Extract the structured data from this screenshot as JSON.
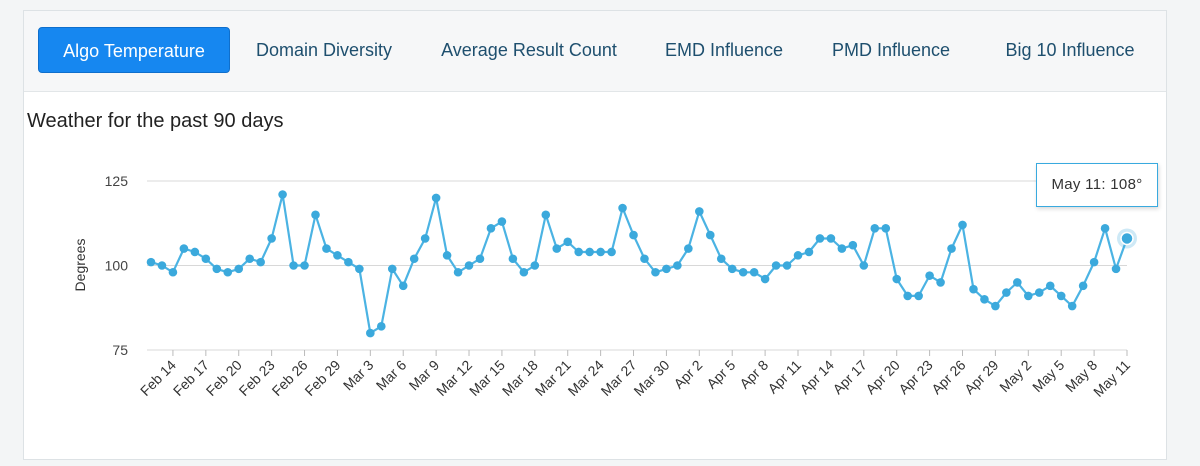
{
  "tabs": [
    {
      "label": "Algo Temperature",
      "active": true
    },
    {
      "label": "Domain Diversity",
      "active": false
    },
    {
      "label": "Average Result Count",
      "active": false
    },
    {
      "label": "EMD Influence",
      "active": false
    },
    {
      "label": "PMD Influence",
      "active": false
    },
    {
      "label": "Big 10 Influence",
      "active": false
    }
  ],
  "tooltip": {
    "text": "May 11: 108°"
  },
  "colors": {
    "line": "#4bb3e3",
    "marker": "#3ba9dc",
    "grid": "#d8d8d8",
    "accent": "#1687f0"
  },
  "chart_data": {
    "type": "line",
    "title": "Weather for the past 90 days",
    "ylabel": "Degrees",
    "xlabel": "",
    "ylim": [
      75,
      125
    ],
    "yticks": [
      75,
      100,
      125
    ],
    "grid": true,
    "legend": "none",
    "x_tick_labels": [
      "Feb 14",
      "Feb 17",
      "Feb 20",
      "Feb 23",
      "Feb 26",
      "Feb 29",
      "Mar 3",
      "Mar 6",
      "Mar 9",
      "Mar 12",
      "Mar 15",
      "Mar 18",
      "Mar 21",
      "Mar 24",
      "Mar 27",
      "Mar 30",
      "Apr 2",
      "Apr 5",
      "Apr 8",
      "Apr 11",
      "Apr 14",
      "Apr 17",
      "Apr 20",
      "Apr 23",
      "Apr 26",
      "Apr 29",
      "May 2",
      "May 5",
      "May 8",
      "May 11"
    ],
    "series": [
      {
        "values": [
          101,
          100,
          98,
          105,
          104,
          102,
          99,
          98,
          99,
          102,
          101,
          108,
          121,
          100,
          100,
          115,
          105,
          103,
          101,
          99,
          80,
          82,
          99,
          94,
          102,
          108,
          120,
          103,
          98,
          100,
          102,
          111,
          113,
          102,
          98,
          100,
          115,
          105,
          107,
          104,
          104,
          104,
          104,
          117,
          109,
          102,
          98,
          99,
          100,
          105,
          116,
          109,
          102,
          99,
          98,
          98,
          96,
          100,
          100,
          103,
          104,
          108,
          108,
          105,
          106,
          100,
          111,
          111,
          96,
          91,
          91,
          97,
          95,
          105,
          112,
          93,
          90,
          88,
          92,
          95,
          91,
          92,
          94,
          91,
          88,
          94,
          101,
          111,
          99,
          108
        ]
      }
    ],
    "highlight": {
      "label": "May 11",
      "value": 108
    }
  }
}
